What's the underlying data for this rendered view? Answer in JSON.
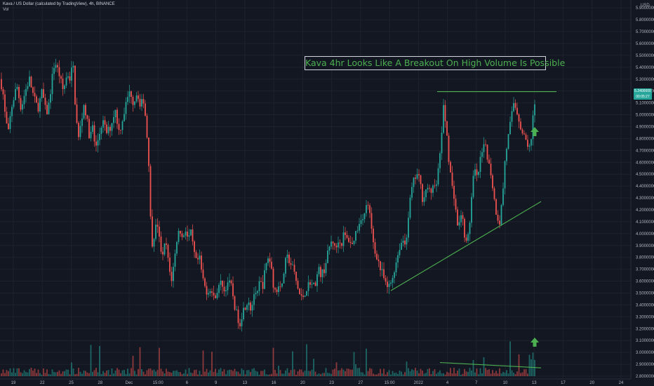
{
  "header": {
    "title": "Kava / US Dollar (calculated by TradingView), 4h, BINANCE",
    "volume_label": "Vol"
  },
  "currency": "USD",
  "annotation": "Kava 4hr Looks Like A Breakout On High Volume Is Possible",
  "last_price": {
    "price": "5.2400000",
    "countdown": "00:05:27"
  },
  "colors": {
    "up": "#26a69a",
    "down": "#ef5350",
    "line": "#4caf50",
    "background": "#131722",
    "grid": "#1e222d"
  },
  "chart_data": {
    "type": "candlestick",
    "title": "Kava 4hr Looks Like A Breakout On High Volume Is Possible",
    "ylabel": "USD",
    "ylim": [
      2.8,
      5.95
    ],
    "x_ticks": [
      "19",
      "22",
      "25",
      "28",
      "Dec",
      "15:00",
      "6",
      "9",
      "13",
      "16",
      "20",
      "23",
      "27",
      "15:00",
      "2022",
      "4",
      "7",
      "10",
      "13",
      "17",
      "20",
      "24"
    ],
    "y_ticks": [
      "2.8000000",
      "2.9000000",
      "3.0000000",
      "3.1000000",
      "3.2000000",
      "3.3000000",
      "3.4000000",
      "3.5000000",
      "3.6000000",
      "3.7000000",
      "3.8000000",
      "3.9000000",
      "4.0000000",
      "4.1000000",
      "4.2000000",
      "4.3000000",
      "4.4000000",
      "4.5000000",
      "4.6000000",
      "4.7000000",
      "4.8000000",
      "4.9000000",
      "5.0000000",
      "5.1000000",
      "5.2000000",
      "5.3000000",
      "5.4000000",
      "5.5000000",
      "5.6000000",
      "5.7000000",
      "5.8000000",
      "5.9000000"
    ],
    "price_path": [
      [
        0,
        5.3
      ],
      [
        4,
        5.2
      ],
      [
        8,
        4.95
      ],
      [
        12,
        4.85
      ],
      [
        16,
        5.05
      ],
      [
        20,
        5.15
      ],
      [
        24,
        5.25
      ],
      [
        30,
        5.05
      ],
      [
        36,
        5.2
      ],
      [
        42,
        5.3
      ],
      [
        48,
        5.15
      ],
      [
        54,
        5.05
      ],
      [
        60,
        5.2
      ],
      [
        66,
        5.0
      ],
      [
        70,
        5.1
      ],
      [
        74,
        5.3
      ],
      [
        78,
        5.45
      ],
      [
        84,
        5.35
      ],
      [
        90,
        5.2
      ],
      [
        96,
        5.35
      ],
      [
        100,
        5.3
      ],
      [
        104,
        5.45
      ],
      [
        108,
        5.0
      ],
      [
        112,
        4.8
      ],
      [
        116,
        4.95
      ],
      [
        120,
        5.1
      ],
      [
        124,
        4.95
      ],
      [
        128,
        4.8
      ],
      [
        132,
        4.9
      ],
      [
        136,
        4.7
      ],
      [
        140,
        4.8
      ],
      [
        146,
        4.95
      ],
      [
        152,
        4.85
      ],
      [
        158,
        4.9
      ],
      [
        164,
        5.05
      ],
      [
        170,
        4.85
      ],
      [
        176,
        5.0
      ],
      [
        182,
        5.15
      ],
      [
        186,
        5.2
      ],
      [
        190,
        5.1
      ],
      [
        196,
        5.2
      ],
      [
        200,
        5.05
      ],
      [
        204,
        5.15
      ],
      [
        208,
        4.95
      ],
      [
        212,
        4.6
      ],
      [
        214,
        4.2
      ],
      [
        216,
        3.9
      ],
      [
        220,
        4.0
      ],
      [
        224,
        4.1
      ],
      [
        228,
        3.9
      ],
      [
        232,
        3.8
      ],
      [
        236,
        3.95
      ],
      [
        240,
        3.75
      ],
      [
        244,
        3.6
      ],
      [
        248,
        3.75
      ],
      [
        252,
        3.95
      ],
      [
        256,
        4.05
      ],
      [
        260,
        3.95
      ],
      [
        264,
        4.05
      ],
      [
        268,
        3.95
      ],
      [
        272,
        4.0
      ],
      [
        276,
        3.85
      ],
      [
        280,
        3.75
      ],
      [
        284,
        3.8
      ],
      [
        288,
        3.65
      ],
      [
        292,
        3.55
      ],
      [
        296,
        3.5
      ],
      [
        300,
        3.55
      ],
      [
        304,
        3.45
      ],
      [
        308,
        3.5
      ],
      [
        312,
        3.55
      ],
      [
        316,
        3.6
      ],
      [
        320,
        3.5
      ],
      [
        324,
        3.6
      ],
      [
        330,
        3.55
      ],
      [
        334,
        3.4
      ],
      [
        338,
        3.3
      ],
      [
        342,
        3.25
      ],
      [
        346,
        3.35
      ],
      [
        350,
        3.4
      ],
      [
        354,
        3.45
      ],
      [
        358,
        3.35
      ],
      [
        362,
        3.5
      ],
      [
        366,
        3.45
      ],
      [
        370,
        3.6
      ],
      [
        374,
        3.55
      ],
      [
        378,
        3.7
      ],
      [
        382,
        3.8
      ],
      [
        386,
        3.75
      ],
      [
        390,
        3.55
      ],
      [
        394,
        3.5
      ],
      [
        398,
        3.6
      ],
      [
        402,
        3.55
      ],
      [
        406,
        3.75
      ],
      [
        410,
        3.8
      ],
      [
        414,
        3.75
      ],
      [
        418,
        3.7
      ],
      [
        422,
        3.6
      ],
      [
        426,
        3.5
      ],
      [
        430,
        3.45
      ],
      [
        434,
        3.5
      ],
      [
        438,
        3.55
      ],
      [
        442,
        3.6
      ],
      [
        446,
        3.55
      ],
      [
        450,
        3.6
      ],
      [
        454,
        3.7
      ],
      [
        458,
        3.65
      ],
      [
        462,
        3.7
      ],
      [
        466,
        3.8
      ],
      [
        470,
        3.9
      ],
      [
        474,
        3.95
      ],
      [
        478,
        3.85
      ],
      [
        482,
        3.95
      ],
      [
        486,
        3.9
      ],
      [
        490,
        4.0
      ],
      [
        494,
        3.95
      ],
      [
        498,
        3.95
      ],
      [
        502,
        3.9
      ],
      [
        506,
        4.0
      ],
      [
        510,
        4.05
      ],
      [
        514,
        4.15
      ],
      [
        518,
        4.1
      ],
      [
        522,
        4.25
      ],
      [
        526,
        4.2
      ],
      [
        530,
        4.0
      ],
      [
        534,
        3.85
      ],
      [
        538,
        3.8
      ],
      [
        542,
        3.7
      ],
      [
        546,
        3.65
      ],
      [
        550,
        3.55
      ],
      [
        554,
        3.55
      ],
      [
        558,
        3.6
      ],
      [
        562,
        3.7
      ],
      [
        566,
        3.8
      ],
      [
        570,
        3.9
      ],
      [
        574,
        3.95
      ],
      [
        578,
        3.9
      ],
      [
        582,
        4.15
      ],
      [
        586,
        4.35
      ],
      [
        590,
        4.45
      ],
      [
        594,
        4.5
      ],
      [
        598,
        4.45
      ],
      [
        602,
        4.3
      ],
      [
        606,
        4.35
      ],
      [
        610,
        4.4
      ],
      [
        614,
        4.3
      ],
      [
        618,
        4.45
      ],
      [
        622,
        4.4
      ],
      [
        626,
        4.6
      ],
      [
        630,
        4.9
      ],
      [
        632,
        5.05
      ],
      [
        636,
        4.9
      ],
      [
        640,
        4.6
      ],
      [
        644,
        4.4
      ],
      [
        648,
        4.3
      ],
      [
        652,
        4.05
      ],
      [
        656,
        4.15
      ],
      [
        660,
        4.1
      ],
      [
        664,
        3.9
      ],
      [
        668,
        4.0
      ],
      [
        672,
        4.3
      ],
      [
        676,
        4.55
      ],
      [
        680,
        4.45
      ],
      [
        684,
        4.6
      ],
      [
        688,
        4.7
      ],
      [
        692,
        4.75
      ],
      [
        696,
        4.6
      ],
      [
        700,
        4.5
      ],
      [
        704,
        4.3
      ],
      [
        708,
        4.15
      ],
      [
        712,
        4.1
      ],
      [
        716,
        4.3
      ],
      [
        720,
        4.65
      ],
      [
        724,
        4.8
      ],
      [
        728,
        4.95
      ],
      [
        732,
        5.1
      ],
      [
        736,
        5.05
      ],
      [
        740,
        4.95
      ],
      [
        744,
        4.85
      ],
      [
        748,
        4.8
      ],
      [
        752,
        4.75
      ],
      [
        756,
        4.7
      ],
      [
        760,
        5.0
      ],
      [
        762,
        5.1
      ],
      [
        764,
        5.24
      ]
    ],
    "trendlines": [
      {
        "from": [
          623,
          5.195
        ],
        "to": [
          793,
          5.195
        ]
      },
      {
        "from": [
          557,
          3.52
        ],
        "to": [
          771,
          4.27
        ]
      },
      {
        "from": [
          627,
          2.915
        ],
        "to": [
          771,
          2.87
        ]
      }
    ]
  }
}
